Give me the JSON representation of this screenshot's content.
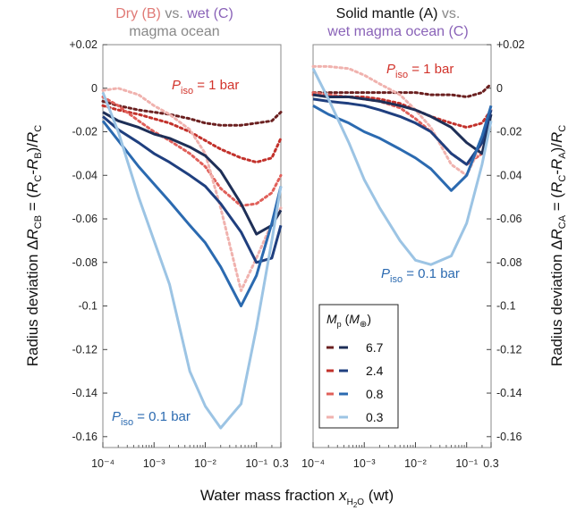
{
  "titles": {
    "left": {
      "line1_a": "Dry (B)",
      "line1_b": " vs. ",
      "line1_c": "wet (C)",
      "line2": "magma ocean"
    },
    "right": {
      "line1_a": "Solid mantle (A)",
      "line1_b": " vs.",
      "line2": "wet magma ocean (C)"
    }
  },
  "axes": {
    "xlabel_main": "Water mass fraction ",
    "xlabel_var": "x",
    "xlabel_sub": "H",
    "xlabel_subsub": "2",
    "xlabel_sub2": "O",
    "xlabel_unit": " (wt)",
    "ylabel_left": "Radius deviation ΔR_CB = (R_C-R_B)/R_C",
    "ylabel_right": "Radius deviation ΔR_CA = (R_C-R_A)/R_C",
    "y_ticks": [
      "+0.02",
      "0",
      "-0.02",
      "-0.04",
      "-0.06",
      "-0.08",
      "-0.1",
      "-0.12",
      "-0.14",
      "-0.16"
    ],
    "x_ticks": [
      "10⁻⁴",
      "10⁻³",
      "10⁻²",
      "10⁻¹",
      "0.3"
    ]
  },
  "annotations": {
    "p_sym": "P",
    "p_sub": "iso",
    "p1": " = 1 bar",
    "p01": " = 0.1 bar"
  },
  "legend": {
    "title_m": "M",
    "title_p": "p",
    "title_paren_open": " (",
    "title_m2": "M",
    "title_earth": "⊕",
    "title_paren_close": ")",
    "entries": [
      {
        "label": "6.7",
        "dash_color": "#6b2020",
        "solid_color": "#1e2f57"
      },
      {
        "label": "2.4",
        "dash_color": "#c2312b",
        "solid_color": "#1f3f7f"
      },
      {
        "label": "0.8",
        "dash_color": "#e0605a",
        "solid_color": "#2b6ab0"
      },
      {
        "label": "0.3",
        "dash_color": "#f0b2ae",
        "solid_color": "#9cc4e4"
      }
    ]
  },
  "colors": {
    "6.7": {
      "p1": "#6b2020",
      "p01": "#1e2f57"
    },
    "2.4": {
      "p1": "#c2312b",
      "p01": "#1f3f7f"
    },
    "0.8": {
      "p1": "#e0605a",
      "p01": "#2b6ab0"
    },
    "0.3": {
      "p1": "#f0b2ae",
      "p01": "#9cc4e4"
    },
    "title_red": "#e07a76",
    "title_purple": "#8a63b8",
    "title_gray": "#888888",
    "ann_red": "#d2332b",
    "ann_blue": "#2b6ab0"
  },
  "chart_data": [
    {
      "type": "line",
      "panel": "left",
      "xscale": "log",
      "xlim": [
        0.0001,
        0.3
      ],
      "ylim": [
        -0.165,
        0.02
      ],
      "series": [
        {
          "mass": "6.7",
          "p": "1 bar",
          "style": "dotted",
          "x": [
            0.0001,
            0.0002,
            0.0005,
            0.001,
            0.002,
            0.005,
            0.01,
            0.02,
            0.05,
            0.1,
            0.2,
            0.3
          ],
          "y": [
            -0.006,
            -0.008,
            -0.01,
            -0.011,
            -0.012,
            -0.014,
            -0.016,
            -0.017,
            -0.017,
            -0.016,
            -0.015,
            -0.011
          ]
        },
        {
          "mass": "2.4",
          "p": "1 bar",
          "style": "dotted",
          "x": [
            0.0001,
            0.0002,
            0.0005,
            0.001,
            0.002,
            0.005,
            0.01,
            0.02,
            0.05,
            0.1,
            0.2,
            0.3
          ],
          "y": [
            -0.008,
            -0.01,
            -0.012,
            -0.014,
            -0.016,
            -0.02,
            -0.024,
            -0.028,
            -0.032,
            -0.034,
            -0.032,
            -0.023
          ]
        },
        {
          "mass": "0.8",
          "p": "1 bar",
          "style": "dotted",
          "x": [
            0.0001,
            0.0002,
            0.0005,
            0.001,
            0.002,
            0.005,
            0.01,
            0.02,
            0.05,
            0.1,
            0.2,
            0.3
          ],
          "y": [
            -0.004,
            -0.008,
            -0.015,
            -0.02,
            -0.024,
            -0.03,
            -0.036,
            -0.046,
            -0.054,
            -0.053,
            -0.048,
            -0.04
          ]
        },
        {
          "mass": "0.3",
          "p": "1 bar",
          "style": "dotted",
          "x": [
            0.0001,
            0.0002,
            0.0005,
            0.001,
            0.002,
            0.005,
            0.01,
            0.02,
            0.05,
            0.1,
            0.2,
            0.3
          ],
          "y": [
            -0.001,
            0.0,
            -0.003,
            -0.008,
            -0.012,
            -0.019,
            -0.03,
            -0.055,
            -0.093,
            -0.078,
            -0.062,
            -0.055
          ]
        },
        {
          "mass": "6.7",
          "p": "0.1 bar",
          "style": "solid",
          "x": [
            0.0001,
            0.0002,
            0.0005,
            0.001,
            0.002,
            0.005,
            0.01,
            0.02,
            0.05,
            0.1,
            0.2,
            0.3
          ],
          "y": [
            -0.011,
            -0.015,
            -0.018,
            -0.021,
            -0.023,
            -0.027,
            -0.031,
            -0.038,
            -0.053,
            -0.067,
            -0.063,
            -0.056
          ]
        },
        {
          "mass": "2.4",
          "p": "0.1 bar",
          "style": "solid",
          "x": [
            0.0001,
            0.0002,
            0.0005,
            0.001,
            0.002,
            0.005,
            0.01,
            0.02,
            0.05,
            0.1,
            0.2,
            0.3
          ],
          "y": [
            -0.013,
            -0.019,
            -0.025,
            -0.03,
            -0.034,
            -0.04,
            -0.045,
            -0.053,
            -0.066,
            -0.08,
            -0.078,
            -0.063
          ]
        },
        {
          "mass": "0.8",
          "p": "0.1 bar",
          "style": "solid",
          "x": [
            0.0001,
            0.0002,
            0.0005,
            0.001,
            0.002,
            0.005,
            0.01,
            0.02,
            0.05,
            0.1,
            0.2,
            0.3
          ],
          "y": [
            -0.015,
            -0.024,
            -0.036,
            -0.044,
            -0.052,
            -0.063,
            -0.071,
            -0.082,
            -0.1,
            -0.086,
            -0.062,
            -0.045
          ]
        },
        {
          "mass": "0.3",
          "p": "0.1 bar",
          "style": "solid",
          "x": [
            0.0001,
            0.0002,
            0.0005,
            0.001,
            0.002,
            0.005,
            0.01,
            0.02,
            0.05,
            0.1,
            0.2,
            0.3
          ],
          "y": [
            -0.002,
            -0.02,
            -0.05,
            -0.07,
            -0.09,
            -0.13,
            -0.146,
            -0.156,
            -0.145,
            -0.11,
            -0.07,
            -0.045
          ]
        }
      ]
    },
    {
      "type": "line",
      "panel": "right",
      "xscale": "log",
      "xlim": [
        0.0001,
        0.3
      ],
      "ylim": [
        -0.165,
        0.02
      ],
      "series": [
        {
          "mass": "6.7",
          "p": "1 bar",
          "style": "dotted",
          "x": [
            0.0001,
            0.0002,
            0.0005,
            0.001,
            0.002,
            0.005,
            0.01,
            0.02,
            0.05,
            0.1,
            0.2,
            0.3
          ],
          "y": [
            -0.002,
            -0.002,
            -0.002,
            -0.002,
            -0.002,
            -0.002,
            -0.002,
            -0.003,
            -0.003,
            -0.004,
            -0.002,
            0.002
          ]
        },
        {
          "mass": "2.4",
          "p": "1 bar",
          "style": "dotted",
          "x": [
            0.0001,
            0.0002,
            0.0005,
            0.001,
            0.002,
            0.005,
            0.01,
            0.02,
            0.05,
            0.1,
            0.2,
            0.3
          ],
          "y": [
            -0.003,
            -0.004,
            -0.004,
            -0.004,
            -0.005,
            -0.007,
            -0.01,
            -0.013,
            -0.016,
            -0.018,
            -0.016,
            -0.01
          ]
        },
        {
          "mass": "0.8",
          "p": "1 bar",
          "style": "dotted",
          "x": [
            0.0001,
            0.0002,
            0.0005,
            0.001,
            0.002,
            0.005,
            0.01,
            0.02,
            0.05,
            0.1,
            0.2,
            0.3
          ],
          "y": [
            -0.002,
            -0.003,
            -0.004,
            -0.005,
            -0.006,
            -0.009,
            -0.014,
            -0.02,
            -0.03,
            -0.035,
            -0.03,
            -0.015
          ]
        },
        {
          "mass": "0.3",
          "p": "1 bar",
          "style": "dotted",
          "x": [
            0.0001,
            0.0002,
            0.0005,
            0.001,
            0.002,
            0.005,
            0.01,
            0.02,
            0.05,
            0.1,
            0.2,
            0.3
          ],
          "y": [
            0.01,
            0.01,
            0.009,
            0.006,
            0.002,
            -0.003,
            -0.01,
            -0.018,
            -0.035,
            -0.04,
            -0.025,
            -0.01
          ]
        },
        {
          "mass": "6.7",
          "p": "0.1 bar",
          "style": "solid",
          "x": [
            0.0001,
            0.0002,
            0.0005,
            0.001,
            0.002,
            0.005,
            0.01,
            0.02,
            0.05,
            0.1,
            0.2,
            0.3
          ],
          "y": [
            -0.003,
            -0.004,
            -0.004,
            -0.005,
            -0.006,
            -0.008,
            -0.01,
            -0.013,
            -0.018,
            -0.025,
            -0.03,
            -0.012
          ]
        },
        {
          "mass": "2.4",
          "p": "0.1 bar",
          "style": "solid",
          "x": [
            0.0001,
            0.0002,
            0.0005,
            0.001,
            0.002,
            0.005,
            0.01,
            0.02,
            0.05,
            0.1,
            0.2,
            0.3
          ],
          "y": [
            -0.005,
            -0.006,
            -0.007,
            -0.008,
            -0.01,
            -0.013,
            -0.016,
            -0.02,
            -0.03,
            -0.035,
            -0.025,
            -0.01
          ]
        },
        {
          "mass": "0.8",
          "p": "0.1 bar",
          "style": "solid",
          "x": [
            0.0001,
            0.0002,
            0.0005,
            0.001,
            0.002,
            0.005,
            0.01,
            0.02,
            0.05,
            0.1,
            0.2,
            0.3
          ],
          "y": [
            -0.008,
            -0.012,
            -0.016,
            -0.02,
            -0.023,
            -0.028,
            -0.032,
            -0.037,
            -0.047,
            -0.04,
            -0.022,
            -0.008
          ]
        },
        {
          "mass": "0.3",
          "p": "0.1 bar",
          "style": "solid",
          "x": [
            0.0001,
            0.0002,
            0.0005,
            0.001,
            0.002,
            0.005,
            0.01,
            0.02,
            0.05,
            0.1,
            0.2,
            0.3
          ],
          "y": [
            0.009,
            -0.005,
            -0.025,
            -0.042,
            -0.055,
            -0.07,
            -0.079,
            -0.081,
            -0.077,
            -0.062,
            -0.035,
            -0.015
          ]
        }
      ]
    }
  ]
}
